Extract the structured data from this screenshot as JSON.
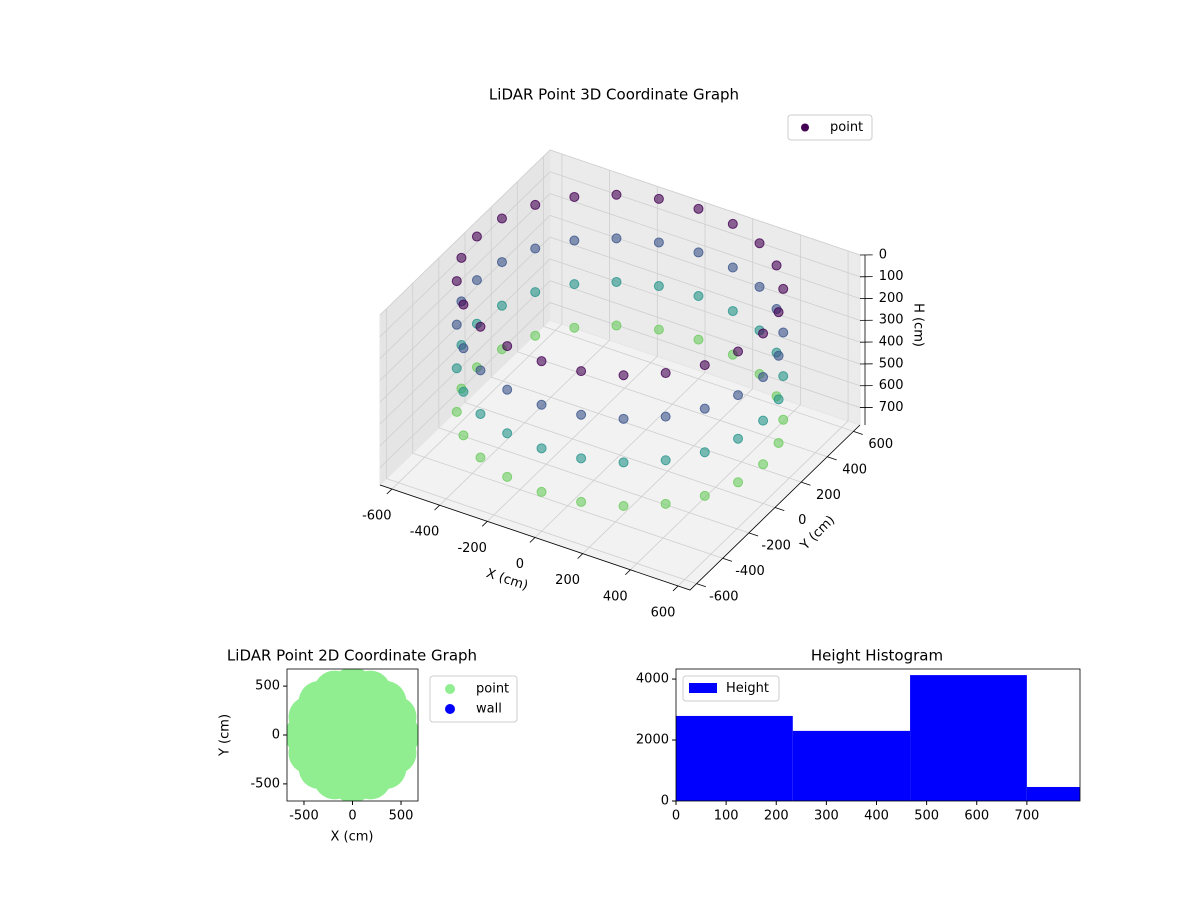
{
  "chart_data": [
    {
      "type": "scatter3d",
      "title": "LiDAR Point 3D Coordinate Graph",
      "xlabel": "X (cm)",
      "ylabel": "Y (cm)",
      "zlabel": "H (cm)",
      "xlim": [
        -650,
        650
      ],
      "ylim": [
        -650,
        650
      ],
      "zlim": [
        0,
        780
      ],
      "z_inverted": true,
      "xticks": [
        -600,
        -400,
        -200,
        0,
        200,
        400,
        600
      ],
      "yticks": [
        -600,
        -400,
        -200,
        0,
        200,
        400,
        600
      ],
      "zticks": [
        0,
        100,
        200,
        300,
        400,
        500,
        600,
        700
      ],
      "colormap": "viridis",
      "legend": "upper right",
      "series": [
        {
          "name": "point",
          "color": "#440154",
          "x": [
            600,
            580,
            520,
            424,
            300,
            155,
            0,
            -155,
            -300,
            -424,
            -520,
            -580,
            -600,
            -580,
            -520,
            -424,
            -300,
            -155,
            0,
            155,
            300,
            424,
            520,
            580,
            600,
            580,
            520,
            424,
            300,
            155,
            0,
            -155,
            -300,
            -424,
            -520,
            -580,
            -600,
            -580,
            -520,
            -424,
            -300,
            -155,
            0,
            155,
            300,
            424,
            520,
            580,
            600,
            580,
            520,
            424,
            300,
            155,
            0,
            -155,
            -300,
            -424,
            -520,
            -580,
            -600,
            -580,
            -520,
            -424,
            -300,
            -155,
            0,
            155,
            300,
            424,
            520,
            580,
            600,
            580,
            520,
            424,
            300,
            155,
            0,
            -155,
            -300,
            -424,
            -520,
            -580,
            -600,
            -580,
            -520,
            -424,
            -300,
            -155,
            0,
            155,
            300,
            424,
            520,
            580
          ],
          "y": [
            0,
            155,
            300,
            424,
            520,
            580,
            600,
            580,
            520,
            424,
            300,
            155,
            0,
            -155,
            -300,
            -424,
            -520,
            -580,
            -600,
            -580,
            -520,
            -424,
            -300,
            -155,
            0,
            155,
            300,
            424,
            520,
            580,
            600,
            580,
            520,
            424,
            300,
            155,
            0,
            -155,
            -300,
            -424,
            -520,
            -580,
            -600,
            -580,
            -520,
            -424,
            -300,
            -155,
            0,
            155,
            300,
            424,
            520,
            580,
            600,
            580,
            520,
            424,
            300,
            155,
            0,
            -155,
            -300,
            -424,
            -520,
            -580,
            -600,
            -580,
            -520,
            -424,
            -300,
            -155,
            0,
            155,
            300,
            424,
            520,
            580,
            600,
            580,
            520,
            424,
            300,
            155,
            0,
            -155,
            -300,
            -424,
            -520,
            -580,
            -600,
            -580,
            -520,
            -424,
            -300,
            -155
          ],
          "z": [
            0,
            0,
            0,
            0,
            0,
            0,
            0,
            0,
            0,
            0,
            0,
            0,
            0,
            0,
            0,
            0,
            0,
            0,
            0,
            0,
            0,
            0,
            0,
            0,
            200,
            200,
            200,
            200,
            200,
            200,
            200,
            200,
            200,
            200,
            200,
            200,
            200,
            200,
            200,
            200,
            200,
            200,
            200,
            200,
            200,
            200,
            200,
            200,
            400,
            400,
            400,
            400,
            400,
            400,
            400,
            400,
            400,
            400,
            400,
            400,
            400,
            400,
            400,
            400,
            400,
            400,
            400,
            400,
            400,
            400,
            400,
            400,
            600,
            600,
            600,
            600,
            600,
            600,
            600,
            600,
            600,
            600,
            600,
            600,
            600,
            600,
            600,
            600,
            600,
            600,
            600,
            600,
            600,
            600,
            600,
            600
          ]
        }
      ]
    },
    {
      "type": "scatter",
      "title": "LiDAR Point 2D Coordinate Graph",
      "xlabel": "X (cm)",
      "ylabel": "Y (cm)",
      "xlim": [
        -675,
        675
      ],
      "ylim": [
        -675,
        675
      ],
      "xticks": [
        -500,
        0,
        500
      ],
      "yticks": [
        -500,
        0,
        500
      ],
      "legend": "outside right",
      "series": [
        {
          "name": "point",
          "color": "#90ee90",
          "x": [
            0,
            250,
            177,
            0,
            -177,
            -250,
            -177,
            0,
            177,
            480,
            443,
            339,
            184,
            0,
            -184,
            -339,
            -443,
            -480,
            -443,
            -339,
            -184,
            0,
            184,
            339,
            443
          ],
          "y": [
            0,
            0,
            177,
            250,
            177,
            0,
            -177,
            -250,
            -177,
            0,
            184,
            339,
            443,
            480,
            443,
            339,
            184,
            0,
            -184,
            -339,
            -443,
            -480,
            -443,
            -339,
            -184
          ]
        },
        {
          "name": "wall",
          "color": "#0000ff",
          "x": [],
          "y": []
        }
      ]
    },
    {
      "type": "histogram",
      "title": "Height Histogram",
      "bins": [
        0,
        233,
        467,
        700,
        806
      ],
      "counts": [
        2790,
        2300,
        4130,
        460
      ],
      "xlim": [
        0,
        806
      ],
      "ylim": [
        0,
        4330
      ],
      "xticks": [
        0,
        100,
        200,
        300,
        400,
        500,
        600,
        700
      ],
      "yticks": [
        0,
        2000,
        4000
      ],
      "series_name": "Height",
      "color": "#0000ff",
      "legend": "upper left"
    }
  ]
}
